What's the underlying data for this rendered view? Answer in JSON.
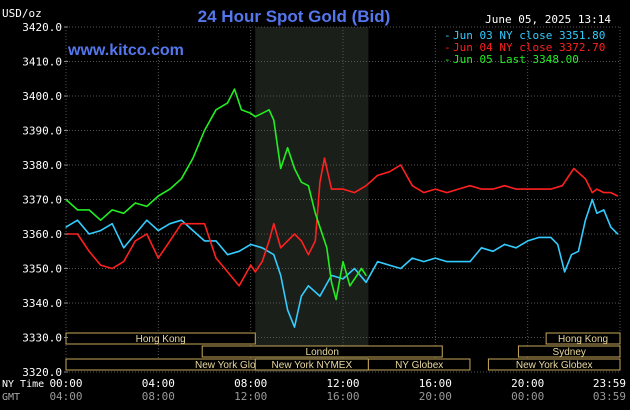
{
  "header": {
    "title": "24 Hour Spot Gold (Bid)",
    "unit": "USD/oz",
    "timestamp": "June 05, 2025 13:14",
    "site": "www.kitco.com"
  },
  "legend": [
    {
      "label": "Jun 03 NY close 3351.80",
      "color": "#33ccff"
    },
    {
      "label": "Jun 04 NY close 3372.70",
      "color": "#ff2020"
    },
    {
      "label": "Jun 05 Last 3348.00",
      "color": "#22ee22"
    }
  ],
  "axis_labels": {
    "ny_time": "NY Time",
    "gmt": "GMT"
  },
  "sessions": [
    {
      "label": "Hong Kong",
      "start": 0,
      "end": 8.2,
      "row": 0
    },
    {
      "label": "London",
      "start": 5.9,
      "end": 16.3,
      "row": 1
    },
    {
      "label": "New York Globex",
      "start": 0,
      "end": 14.5,
      "row": 2
    },
    {
      "label": "New York NYMEX",
      "start": 8.2,
      "end": 13.1,
      "row": 2
    },
    {
      "label": "NY Globex",
      "start": 13.1,
      "end": 17.5,
      "row": 2
    },
    {
      "label": "Hong Kong",
      "start": 20.8,
      "end": 24,
      "row": 0
    },
    {
      "label": "Sydney",
      "start": 19.6,
      "end": 24,
      "row": 1
    },
    {
      "label": "New York Globex",
      "start": 18.3,
      "end": 24,
      "row": 2
    }
  ],
  "chart_data": {
    "type": "line",
    "title": "24 Hour Spot Gold (Bid)",
    "ylabel": "USD/oz",
    "ylim": [
      3320,
      3420
    ],
    "xlim": [
      0,
      24
    ],
    "grid": true,
    "y_ticks": [
      "3420.0",
      "3410.0",
      "3400.0",
      "3390.0",
      "3380.0",
      "3370.0",
      "3360.0",
      "3350.0",
      "3340.0",
      "3330.0",
      "3320.0"
    ],
    "x_ticks_ny": [
      "00:00",
      "04:00",
      "08:00",
      "12:00",
      "16:00",
      "20:00",
      "23:59"
    ],
    "x_ticks_gmt": [
      "04:00",
      "08:00",
      "12:00",
      "16:00",
      "20:00",
      "00:00",
      "03:59"
    ],
    "highlight_hours": [
      8.2,
      13.1
    ],
    "series": [
      {
        "name": "Jun 03 NY close 3351.80",
        "color": "#33ccff",
        "x": [
          0,
          0.5,
          1,
          1.5,
          2,
          2.5,
          3,
          3.5,
          4,
          4.5,
          5,
          5.5,
          6,
          6.5,
          7,
          7.5,
          8,
          8.5,
          9,
          9.3,
          9.6,
          9.9,
          10.2,
          10.5,
          11,
          11.5,
          12,
          12.5,
          13,
          13.5,
          14,
          14.5,
          15,
          15.5,
          16,
          16.5,
          17,
          17.5,
          18,
          18.5,
          19,
          19.5,
          20,
          20.5,
          21,
          21.3,
          21.6,
          21.9,
          22.2,
          22.5,
          22.8,
          23,
          23.3,
          23.6,
          23.9
        ],
        "y": [
          3362,
          3364,
          3360,
          3361,
          3363,
          3356,
          3360,
          3364,
          3361,
          3363,
          3364,
          3361,
          3358,
          3358,
          3354,
          3355,
          3357,
          3356,
          3354,
          3348,
          3338,
          3333,
          3342,
          3345,
          3342,
          3348,
          3347,
          3350,
          3346,
          3352,
          3351,
          3350,
          3353,
          3352,
          3353,
          3352,
          3352,
          3352,
          3356,
          3355,
          3357,
          3356,
          3358,
          3359,
          3359,
          3357,
          3349,
          3354,
          3355,
          3364,
          3370,
          3366,
          3367,
          3362,
          3360
        ]
      },
      {
        "name": "Jun 04 NY close 3372.70",
        "color": "#ff2020",
        "x": [
          0,
          0.5,
          1,
          1.5,
          2,
          2.5,
          3,
          3.5,
          4,
          4.5,
          5,
          5.5,
          6,
          6.5,
          7,
          7.5,
          8,
          8.2,
          8.5,
          8.8,
          9,
          9.3,
          9.6,
          9.9,
          10.2,
          10.5,
          10.8,
          11,
          11.2,
          11.5,
          11.8,
          12,
          12.5,
          13,
          13.5,
          14,
          14.5,
          15,
          15.5,
          16,
          16.5,
          17,
          17.5,
          18,
          18.5,
          19,
          19.5,
          20,
          20.5,
          21,
          21.5,
          22,
          22.5,
          22.8,
          23,
          23.3,
          23.6,
          23.9
        ],
        "y": [
          3360,
          3360,
          3355,
          3351,
          3350,
          3352,
          3358,
          3360,
          3353,
          3358,
          3363,
          3363,
          3363,
          3353,
          3349,
          3345,
          3351,
          3349,
          3352,
          3358,
          3363,
          3356,
          3358,
          3360,
          3358,
          3354,
          3358,
          3375,
          3382,
          3373,
          3373,
          3373,
          3372,
          3374,
          3377,
          3378,
          3380,
          3374,
          3372,
          3373,
          3372,
          3373,
          3374,
          3373,
          3373,
          3374,
          3373,
          3373,
          3373,
          3373,
          3374,
          3379,
          3376,
          3372,
          3373,
          3372,
          3372,
          3371
        ]
      },
      {
        "name": "Jun 05 Last 3348.00",
        "color": "#22ee22",
        "x": [
          0,
          0.5,
          1,
          1.5,
          2,
          2.5,
          3,
          3.5,
          4,
          4.5,
          5,
          5.5,
          6,
          6.5,
          7,
          7.3,
          7.6,
          8,
          8.2,
          8.5,
          8.8,
          9,
          9.3,
          9.6,
          9.9,
          10.2,
          10.5,
          10.8,
          11,
          11.3,
          11.5,
          11.7,
          12,
          12.3,
          12.6,
          12.8,
          13
        ],
        "y": [
          3370,
          3367,
          3367,
          3364,
          3367,
          3366,
          3369,
          3368,
          3371,
          3373,
          3376,
          3382,
          3390,
          3396,
          3398,
          3402,
          3396,
          3395,
          3394,
          3395,
          3396,
          3393,
          3379,
          3385,
          3379,
          3375,
          3374,
          3366,
          3362,
          3356,
          3346,
          3341,
          3352,
          3345,
          3348,
          3350,
          3348
        ]
      }
    ]
  }
}
